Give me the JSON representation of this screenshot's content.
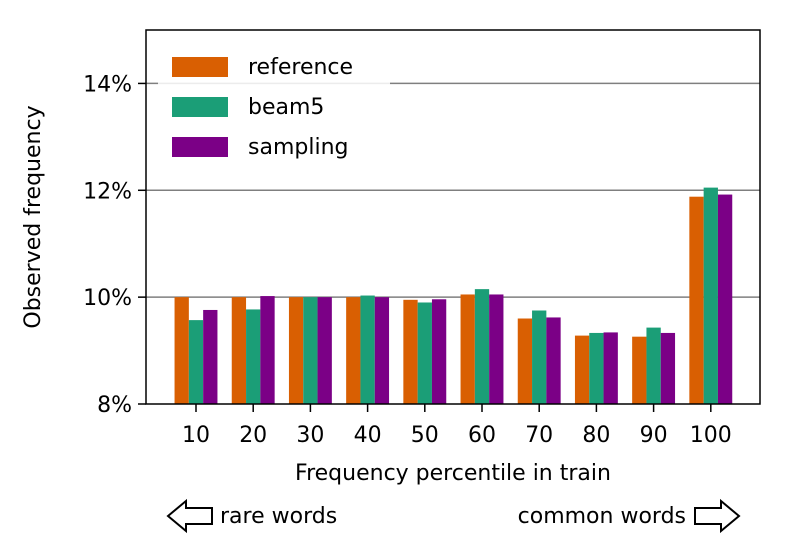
{
  "chart_data": {
    "type": "bar",
    "categories": [
      "10",
      "20",
      "30",
      "40",
      "50",
      "60",
      "70",
      "80",
      "90",
      "100"
    ],
    "series": [
      {
        "name": "reference",
        "color": "#d95f02",
        "values": [
          10.0,
          10.0,
          10.0,
          10.0,
          9.95,
          10.05,
          9.6,
          9.28,
          9.26,
          11.88
        ]
      },
      {
        "name": "beam5",
        "color": "#1b9e77",
        "values": [
          9.57,
          9.77,
          10.0,
          10.03,
          9.9,
          10.15,
          9.75,
          9.33,
          9.43,
          12.05
        ]
      },
      {
        "name": "sampling",
        "color": "#7b0086",
        "values": [
          9.76,
          10.02,
          10.0,
          10.0,
          9.96,
          10.05,
          9.62,
          9.34,
          9.33,
          11.92
        ]
      }
    ],
    "title": "",
    "xlabel": "Frequency percentile in train",
    "ylabel": "Observed frequency",
    "ylim": [
      8,
      15
    ],
    "yticks": [
      8,
      10,
      12,
      14
    ],
    "ytick_labels": [
      "8%",
      "10%",
      "12%",
      "14%"
    ],
    "grid": "horizontal",
    "legend_position": "top-left",
    "annotations": {
      "left": "rare words",
      "right": "common words"
    }
  }
}
